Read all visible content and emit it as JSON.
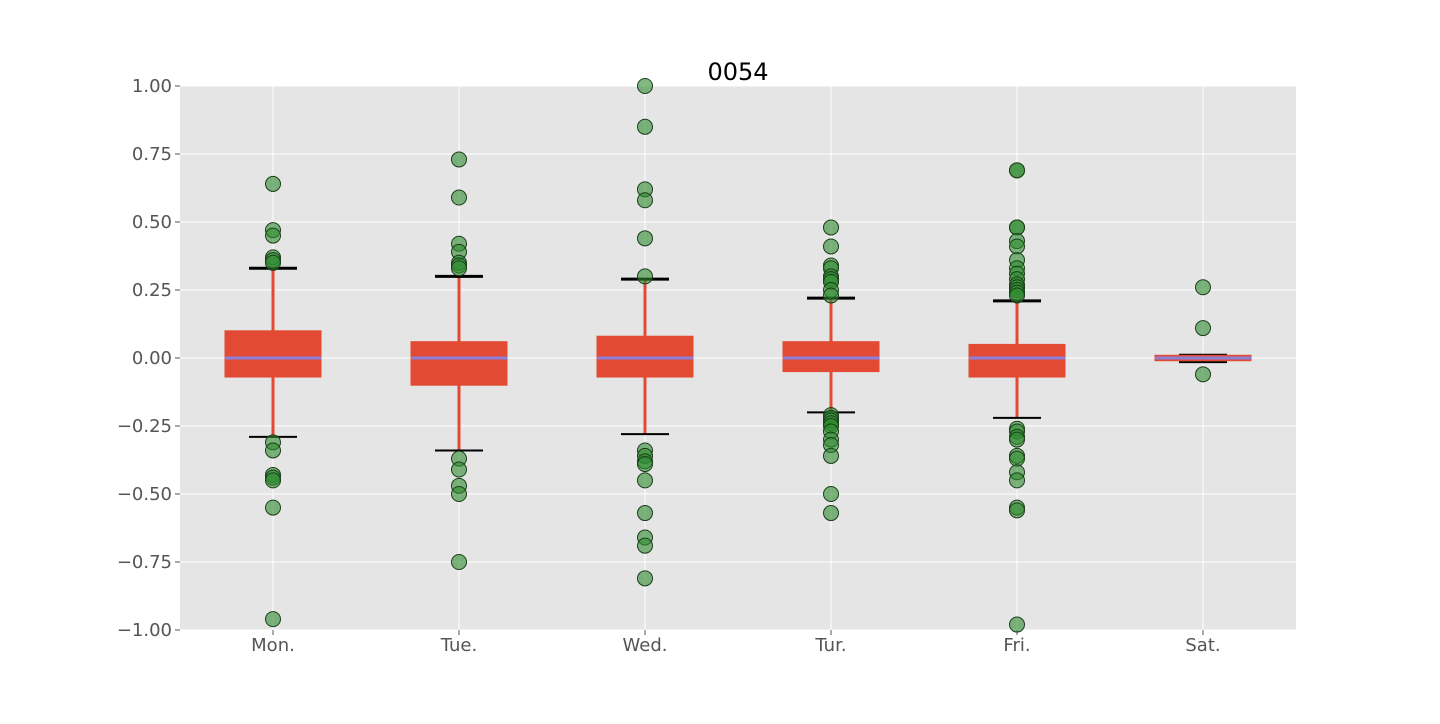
{
  "chart_data": {
    "type": "box",
    "title": "0054",
    "xlabel": "",
    "ylabel": "",
    "ylim": [
      -1.0,
      1.0
    ],
    "yticks": [
      "1.00",
      "0.75",
      "0.50",
      "0.25",
      "0.00",
      "−0.25",
      "−0.50",
      "−0.75",
      "−1.00"
    ],
    "ytick_values": [
      1.0,
      0.75,
      0.5,
      0.25,
      0.0,
      -0.25,
      -0.5,
      -0.75,
      -1.0
    ],
    "categories": [
      "Mon.",
      "Tue.",
      "Wed.",
      "Tur.",
      "Fri.",
      "Sat."
    ],
    "grid": true,
    "colors": {
      "background": "#e5e5e5",
      "grid": "#ffffff",
      "box": "#e24a33",
      "median": "#8c7fd8",
      "whisker": "#e24a33",
      "cap": "#000000",
      "outlier_fill": "#2e8b2e",
      "outlier_edge": "#1a3d1a",
      "tick_text": "#555555",
      "title_text": "#000000"
    },
    "boxes": [
      {
        "category": "Mon.",
        "q1": -0.07,
        "median": 0.0,
        "q3": 0.1,
        "whisker_low": -0.29,
        "whisker_high": 0.33,
        "outliers": [
          0.64,
          0.47,
          0.45,
          0.37,
          0.36,
          0.35,
          -0.31,
          -0.34,
          -0.43,
          -0.44,
          -0.45,
          -0.55,
          -0.96
        ]
      },
      {
        "category": "Tue.",
        "q1": -0.1,
        "median": 0.0,
        "q3": 0.06,
        "whisker_low": -0.34,
        "whisker_high": 0.3,
        "outliers": [
          0.73,
          0.59,
          0.42,
          0.39,
          0.35,
          0.34,
          0.33,
          -0.37,
          -0.41,
          -0.47,
          -0.5,
          -0.75
        ]
      },
      {
        "category": "Wed.",
        "q1": -0.07,
        "median": 0.0,
        "q3": 0.08,
        "whisker_low": -0.28,
        "whisker_high": 0.29,
        "outliers": [
          1.0,
          0.85,
          0.62,
          0.58,
          0.44,
          0.3,
          -0.34,
          -0.36,
          -0.38,
          -0.39,
          -0.45,
          -0.57,
          -0.66,
          -0.69,
          -0.81
        ]
      },
      {
        "category": "Tur.",
        "q1": -0.05,
        "median": 0.0,
        "q3": 0.06,
        "whisker_low": -0.2,
        "whisker_high": 0.22,
        "outliers": [
          0.48,
          0.41,
          0.34,
          0.33,
          0.3,
          0.29,
          0.28,
          0.25,
          0.23,
          -0.21,
          -0.22,
          -0.23,
          -0.24,
          -0.25,
          -0.27,
          -0.3,
          -0.32,
          -0.36,
          -0.5,
          -0.57
        ]
      },
      {
        "category": "Fri.",
        "q1": -0.07,
        "median": 0.0,
        "q3": 0.05,
        "whisker_low": -0.22,
        "whisker_high": 0.21,
        "outliers": [
          0.69,
          0.69,
          0.48,
          0.48,
          0.43,
          0.41,
          0.36,
          0.33,
          0.31,
          0.29,
          0.27,
          0.26,
          0.25,
          0.24,
          0.23,
          -0.26,
          -0.27,
          -0.29,
          -0.3,
          -0.36,
          -0.37,
          -0.42,
          -0.45,
          -0.55,
          -0.56,
          -0.98
        ]
      },
      {
        "category": "Sat.",
        "q1": -0.01,
        "median": 0.0,
        "q3": 0.01,
        "whisker_low": -0.015,
        "whisker_high": 0.01,
        "outliers": [
          0.26,
          0.11,
          -0.06
        ]
      }
    ]
  }
}
